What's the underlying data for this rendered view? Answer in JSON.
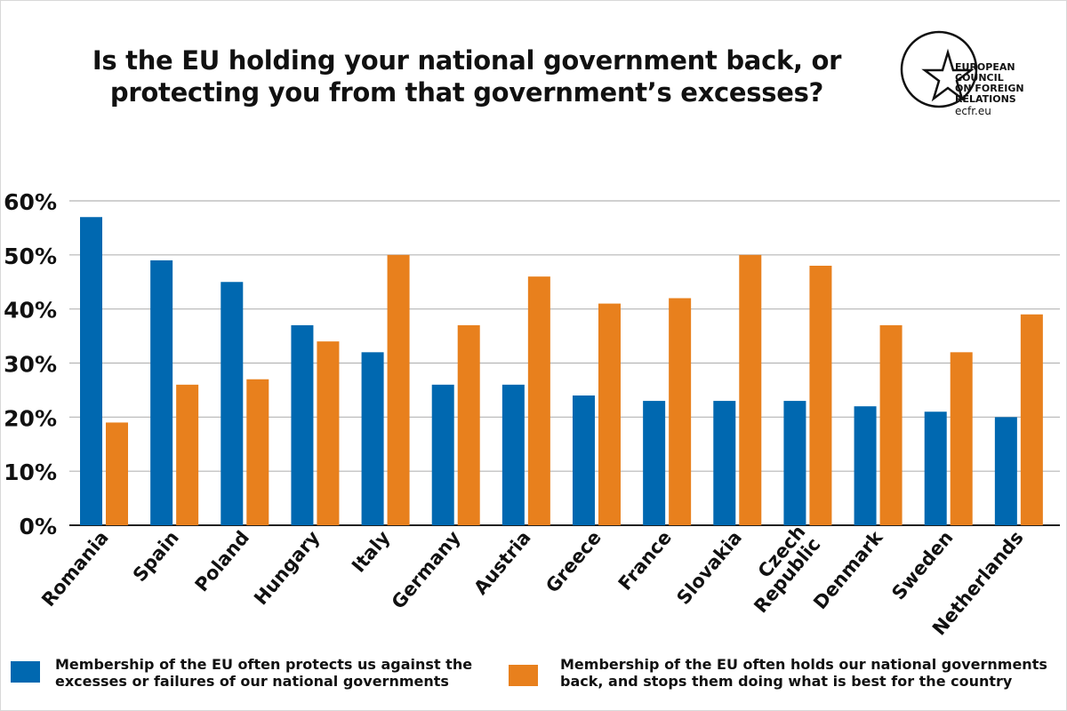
{
  "title_line1": "Is the EU holding your national government back, or",
  "title_line2": "protecting you from that government’s excesses?",
  "logo": {
    "lines": [
      "EUROPEAN",
      "COUNCIL",
      "ON FOREIGN",
      "RELATIONS"
    ],
    "url": "ecfr.eu"
  },
  "colors": {
    "protects": "#0068b0",
    "holds_back": "#e8801d"
  },
  "legend": [
    {
      "line1": "Membership of the EU often protects us against the",
      "line2": "excesses or failures of our national governments"
    },
    {
      "line1": "Membership of the EU often holds our national governments",
      "line2": "back, and stops them doing what is best for the country"
    }
  ],
  "chart_data": {
    "type": "bar",
    "title": "Is the EU holding your national government back, or protecting you from that government’s excesses?",
    "xlabel": "",
    "ylabel": "",
    "ylim": [
      0,
      60
    ],
    "yticks": [
      "0%",
      "10%",
      "20%",
      "30%",
      "40%",
      "50%",
      "60%"
    ],
    "grid": true,
    "legend_position": "bottom",
    "categories": [
      [
        "Romania"
      ],
      [
        "Spain"
      ],
      [
        "Poland"
      ],
      [
        "Hungary"
      ],
      [
        "Italy"
      ],
      [
        "Germany"
      ],
      [
        "Austria"
      ],
      [
        "Greece"
      ],
      [
        "France"
      ],
      [
        "Slovakia"
      ],
      [
        "Czech",
        "Republic"
      ],
      [
        "Denmark"
      ],
      [
        "Sweden"
      ],
      [
        "Netherlands"
      ]
    ],
    "series": [
      {
        "name": "Membership of the EU often protects us against the excesses or failures of our national governments",
        "values": [
          57,
          49,
          45,
          37,
          32,
          26,
          26,
          24,
          23,
          23,
          23,
          22,
          21,
          20
        ]
      },
      {
        "name": "Membership of the EU often holds our national governments back, and stops them doing what is best for the country",
        "values": [
          19,
          26,
          27,
          34,
          50,
          37,
          46,
          41,
          42,
          50,
          48,
          37,
          32,
          39
        ]
      }
    ]
  }
}
